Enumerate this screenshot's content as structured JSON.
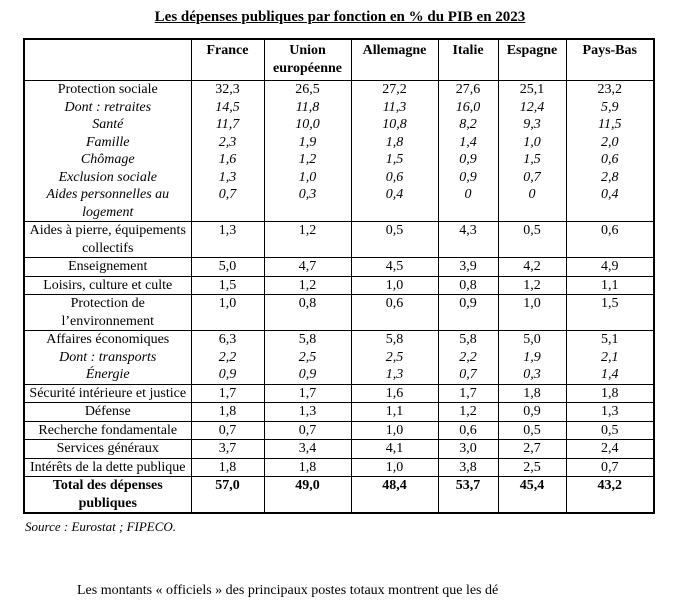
{
  "title": "Les dépenses publiques par fonction en % du PIB en 2023",
  "source_note": "Source : Eurostat ; FIPECO.",
  "cutoff_text": "Les montants « officiels » des principaux postes totaux montrent que les dé",
  "table": {
    "columns": [
      "France",
      "Union européenne",
      "Allemagne",
      "Italie",
      "Espagne",
      "Pays-Bas"
    ],
    "rows": [
      {
        "type": "group",
        "lines": [
          {
            "label": "Protection sociale",
            "italic": false,
            "values": [
              "32,3",
              "26,5",
              "27,2",
              "27,6",
              "25,1",
              "23,2"
            ]
          },
          {
            "label": "Dont : retraites",
            "italic": true,
            "values": [
              "14,5",
              "11,8",
              "11,3",
              "16,0",
              "12,4",
              "5,9"
            ]
          },
          {
            "label": "Santé",
            "italic": true,
            "values": [
              "11,7",
              "10,0",
              "10,8",
              "8,2",
              "9,3",
              "11,5"
            ]
          },
          {
            "label": "Famille",
            "italic": true,
            "values": [
              "2,3",
              "1,9",
              "1,8",
              "1,4",
              "1,0",
              "2,0"
            ]
          },
          {
            "label": "Chômage",
            "italic": true,
            "values": [
              "1,6",
              "1,2",
              "1,5",
              "0,9",
              "1,5",
              "0,6"
            ]
          },
          {
            "label": "Exclusion sociale",
            "italic": true,
            "values": [
              "1,3",
              "1,0",
              "0,6",
              "0,9",
              "0,7",
              "2,8"
            ]
          },
          {
            "label": "Aides personnelles au logement",
            "italic": true,
            "values": [
              "0,7",
              "0,3",
              "0,4",
              "0",
              "0",
              "0,4"
            ]
          }
        ]
      },
      {
        "type": "row",
        "label": "Aides à pierre, équipements collectifs",
        "values": [
          "1,3",
          "1,2",
          "0,5",
          "4,3",
          "0,5",
          "0,6"
        ]
      },
      {
        "type": "row",
        "label": "Enseignement",
        "values": [
          "5,0",
          "4,7",
          "4,5",
          "3,9",
          "4,2",
          "4,9"
        ]
      },
      {
        "type": "row",
        "label": "Loisirs, culture et culte",
        "values": [
          "1,5",
          "1,2",
          "1,0",
          "0,8",
          "1,2",
          "1,1"
        ]
      },
      {
        "type": "row",
        "label": "Protection de l’environnement",
        "values": [
          "1,0",
          "0,8",
          "0,6",
          "0,9",
          "1,0",
          "1,5"
        ]
      },
      {
        "type": "group",
        "lines": [
          {
            "label": "Affaires économiques",
            "italic": false,
            "values": [
              "6,3",
              "5,8",
              "5,8",
              "5,8",
              "5,0",
              "5,1"
            ]
          },
          {
            "label": "Dont : transports",
            "italic": true,
            "values": [
              "2,2",
              "2,5",
              "2,5",
              "2,2",
              "1,9",
              "2,1"
            ]
          },
          {
            "label": "Énergie",
            "italic": true,
            "values": [
              "0,9",
              "0,9",
              "1,3",
              "0,7",
              "0,3",
              "1,4"
            ]
          }
        ]
      },
      {
        "type": "row",
        "label": "Sécurité intérieure et justice",
        "values": [
          "1,7",
          "1,7",
          "1,6",
          "1,7",
          "1,8",
          "1,8"
        ]
      },
      {
        "type": "row",
        "label": "Défense",
        "values": [
          "1,8",
          "1,3",
          "1,1",
          "1,2",
          "0,9",
          "1,3"
        ]
      },
      {
        "type": "row",
        "label": "Recherche fondamentale",
        "values": [
          "0,7",
          "0,7",
          "1,0",
          "0,6",
          "0,5",
          "0,5"
        ]
      },
      {
        "type": "row",
        "label": "Services généraux",
        "values": [
          "3,7",
          "3,4",
          "4,1",
          "3,0",
          "2,7",
          "2,4"
        ]
      },
      {
        "type": "row",
        "label": "Intérêts de la dette publique",
        "values": [
          "1,8",
          "1,8",
          "1,0",
          "3,8",
          "2,5",
          "0,7"
        ]
      },
      {
        "type": "row",
        "bold": true,
        "label": "Total des dépenses publiques",
        "values": [
          "57,0",
          "49,0",
          "48,4",
          "53,7",
          "45,4",
          "43,2"
        ]
      }
    ]
  }
}
